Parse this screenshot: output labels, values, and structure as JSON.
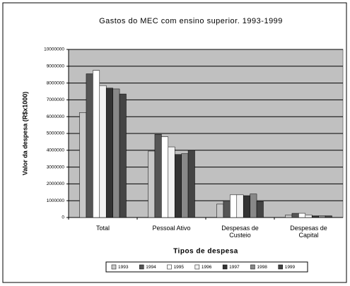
{
  "chart_data": {
    "type": "bar",
    "title": "Gastos do MEC com ensino superior. 1993-1999",
    "y_label": "Valor da despesa (R$x1000)",
    "x_label": "Tipos de despesa",
    "categories": [
      "Total",
      "Pessoal Ativo",
      "Despesas de Custeio",
      "Despesas de Capital"
    ],
    "series": [
      {
        "name": "1993",
        "color": "#c8c8c8",
        "values": [
          6250000,
          3950000,
          800000,
          150000
        ]
      },
      {
        "name": "1994",
        "color": "#555555",
        "values": [
          8550000,
          4950000,
          1000000,
          250000
        ]
      },
      {
        "name": "1995",
        "color": "#ffffff",
        "values": [
          8750000,
          4800000,
          1350000,
          250000
        ]
      },
      {
        "name": "1996",
        "color": "#f2f2f2",
        "values": [
          7850000,
          4200000,
          1350000,
          150000
        ]
      },
      {
        "name": "1997",
        "color": "#333333",
        "values": [
          7700000,
          3750000,
          1300000,
          100000
        ]
      },
      {
        "name": "1998",
        "color": "#888888",
        "values": [
          7650000,
          3800000,
          1400000,
          100000
        ]
      },
      {
        "name": "1999",
        "color": "#444444",
        "values": [
          7350000,
          4000000,
          950000,
          100000
        ]
      }
    ],
    "ylim": [
      0,
      10000000
    ],
    "yticks": [
      0,
      1000000,
      2000000,
      3000000,
      4000000,
      5000000,
      6000000,
      7000000,
      8000000,
      9000000,
      10000000
    ],
    "grid": true,
    "legend": "bottom"
  }
}
